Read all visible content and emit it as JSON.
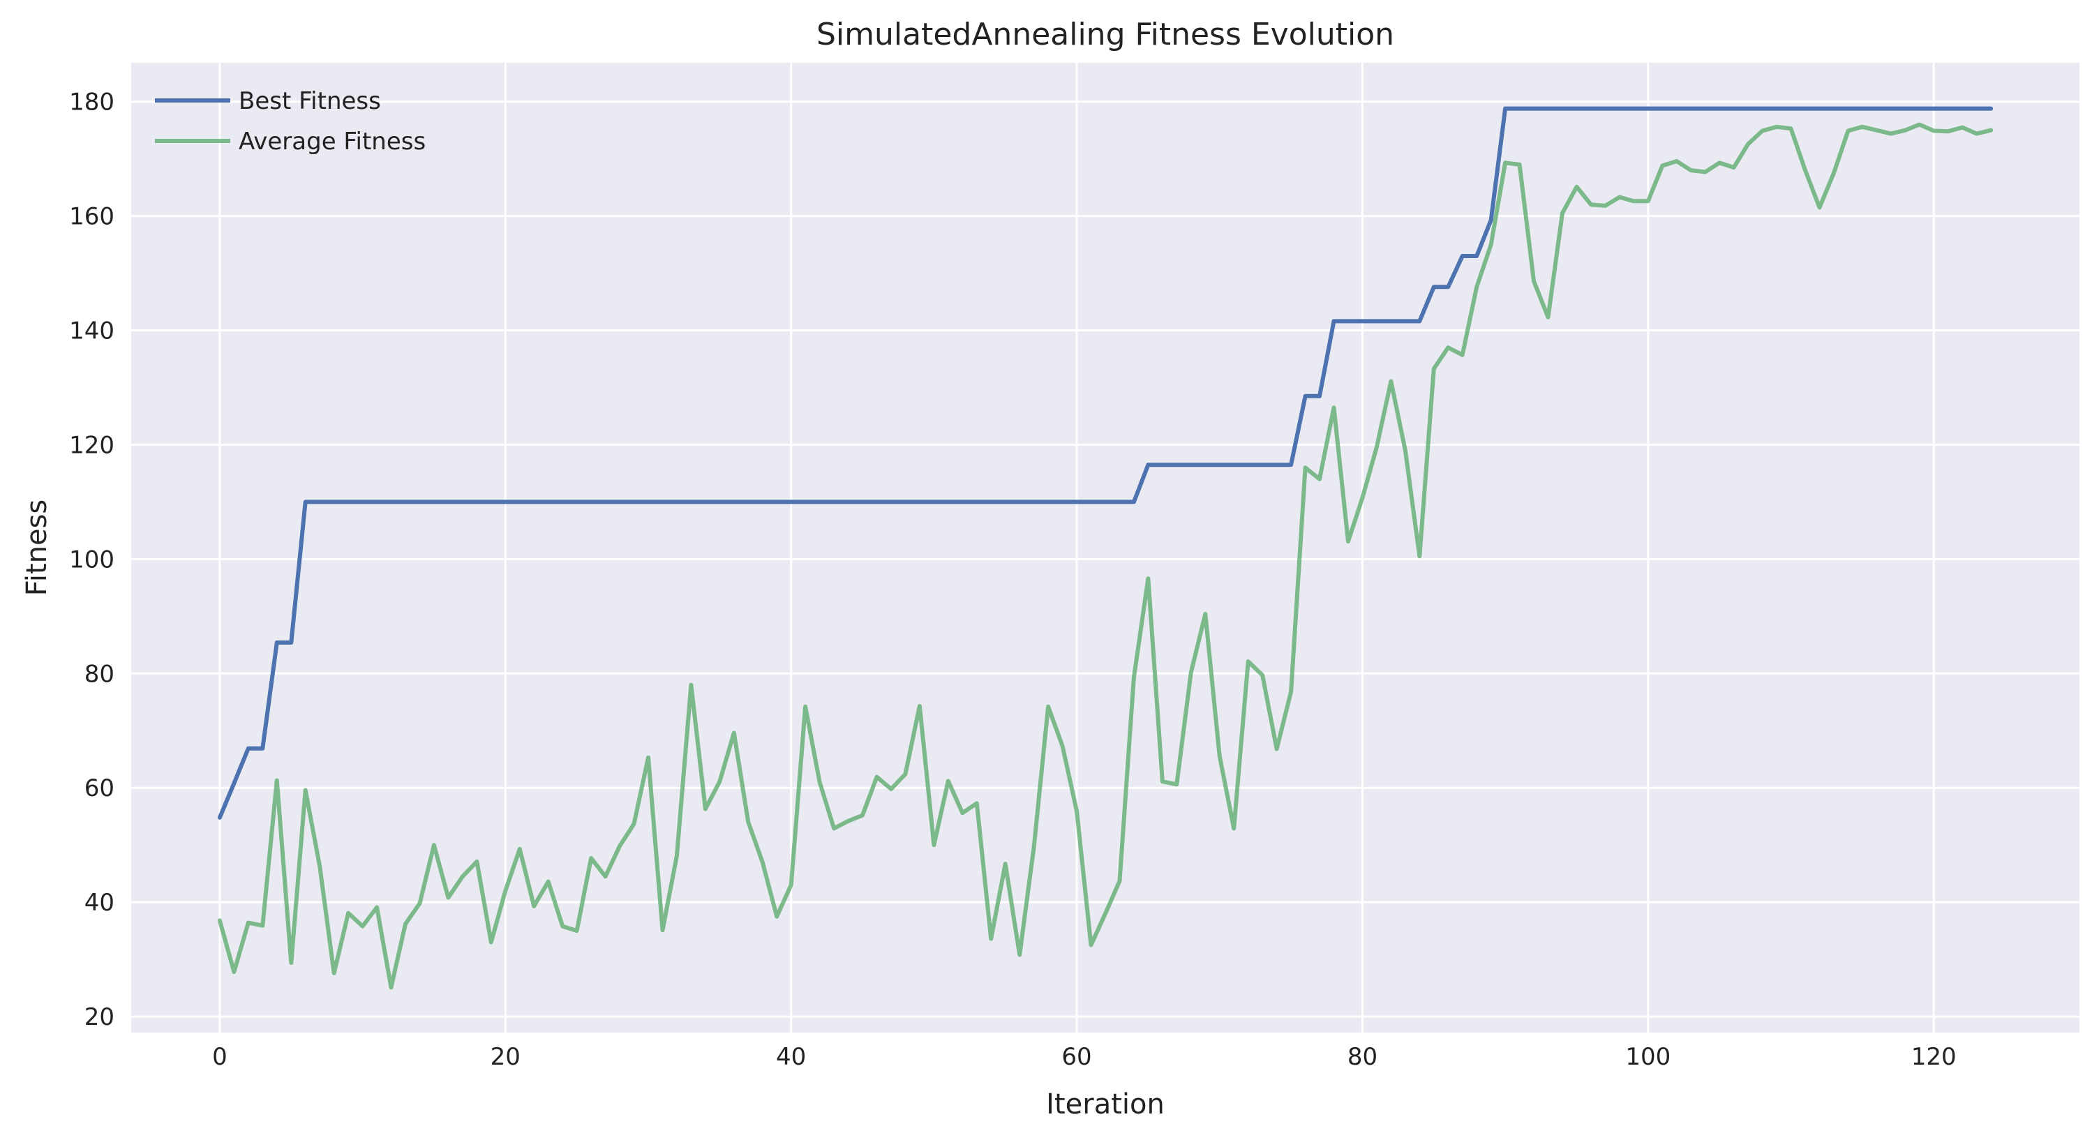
{
  "chart_data": {
    "type": "line",
    "title": "SimulatedAnnealing Fitness Evolution",
    "xlabel": "Iteration",
    "ylabel": "Fitness",
    "xlim": [
      -6.2,
      130.2
    ],
    "ylim": [
      17.2,
      186.8
    ],
    "xticks": [
      0,
      20,
      40,
      60,
      80,
      100,
      120
    ],
    "yticks": [
      20,
      40,
      60,
      80,
      100,
      120,
      140,
      160,
      180
    ],
    "grid": true,
    "legend_position": "top-left",
    "series": [
      {
        "name": "Best Fitness",
        "color": "#4c72b0",
        "x_start": 0,
        "values": [
          54.8,
          60.8,
          66.9,
          66.9,
          85.4,
          85.4,
          110.0,
          110.0,
          110.0,
          110.0,
          110.0,
          110.0,
          110.0,
          110.0,
          110.0,
          110.0,
          110.0,
          110.0,
          110.0,
          110.0,
          110.0,
          110.0,
          110.0,
          110.0,
          110.0,
          110.0,
          110.0,
          110.0,
          110.0,
          110.0,
          110.0,
          110.0,
          110.0,
          110.0,
          110.0,
          110.0,
          110.0,
          110.0,
          110.0,
          110.0,
          110.0,
          110.0,
          110.0,
          110.0,
          110.0,
          110.0,
          110.0,
          110.0,
          110.0,
          110.0,
          110.0,
          110.0,
          110.0,
          110.0,
          110.0,
          110.0,
          110.0,
          110.0,
          110.0,
          110.0,
          110.0,
          110.0,
          110.0,
          110.0,
          110.0,
          116.5,
          116.5,
          116.5,
          116.5,
          116.5,
          116.5,
          116.5,
          116.5,
          116.5,
          116.5,
          116.5,
          128.5,
          128.5,
          141.6,
          141.6,
          141.6,
          141.6,
          141.6,
          141.6,
          141.6,
          147.6,
          147.6,
          153.0,
          153.0,
          159.3,
          178.8,
          178.8,
          178.8,
          178.8,
          178.8,
          178.8,
          178.8,
          178.8,
          178.8,
          178.8,
          178.8,
          178.8,
          178.8,
          178.8,
          178.8,
          178.8,
          178.8,
          178.8,
          178.8,
          178.8,
          178.8,
          178.8,
          178.8,
          178.8,
          178.8,
          178.8,
          178.8,
          178.8,
          178.8,
          178.8,
          178.8,
          178.8,
          178.8,
          178.8,
          178.8
        ]
      },
      {
        "name": "Average Fitness",
        "color": "#55a868",
        "x_start": 0,
        "values": [
          36.8,
          27.8,
          36.4,
          35.9,
          61.3,
          29.4,
          59.6,
          46.3,
          27.6,
          38.1,
          35.8,
          39.1,
          25.1,
          36.2,
          39.8,
          50.0,
          40.8,
          44.5,
          47.1,
          33.0,
          42.0,
          49.3,
          39.3,
          43.6,
          35.8,
          35.0,
          47.7,
          44.5,
          49.8,
          53.7,
          65.3,
          35.1,
          48.1,
          78.0,
          56.3,
          61.1,
          69.6,
          54.0,
          47.0,
          37.5,
          43.0,
          74.2,
          61.0,
          52.9,
          54.2,
          55.2,
          61.9,
          59.8,
          62.4,
          74.3,
          50.0,
          61.2,
          55.6,
          57.3,
          33.6,
          46.7,
          30.8,
          49.7,
          74.2,
          67.3,
          55.9,
          32.5,
          38.0,
          43.7,
          79.3,
          96.6,
          61.1,
          60.6,
          80.2,
          90.4,
          65.5,
          52.9,
          82.1,
          79.7,
          66.8,
          76.8,
          116.0,
          114.0,
          126.5,
          103.1,
          110.7,
          119.6,
          131.1,
          119.0,
          100.5,
          133.3,
          137.0,
          135.7,
          147.6,
          155.0,
          169.3,
          169.0,
          148.6,
          142.3,
          160.5,
          165.1,
          162.0,
          161.8,
          163.3,
          162.6,
          162.6,
          168.8,
          169.6,
          168.0,
          167.7,
          169.3,
          168.5,
          172.6,
          174.9,
          175.6,
          175.3,
          168.0,
          161.5,
          167.5,
          174.9,
          175.6,
          175.0,
          174.4,
          175.0,
          176.0,
          174.9,
          174.8,
          175.5,
          174.4,
          175.0
        ]
      }
    ]
  }
}
